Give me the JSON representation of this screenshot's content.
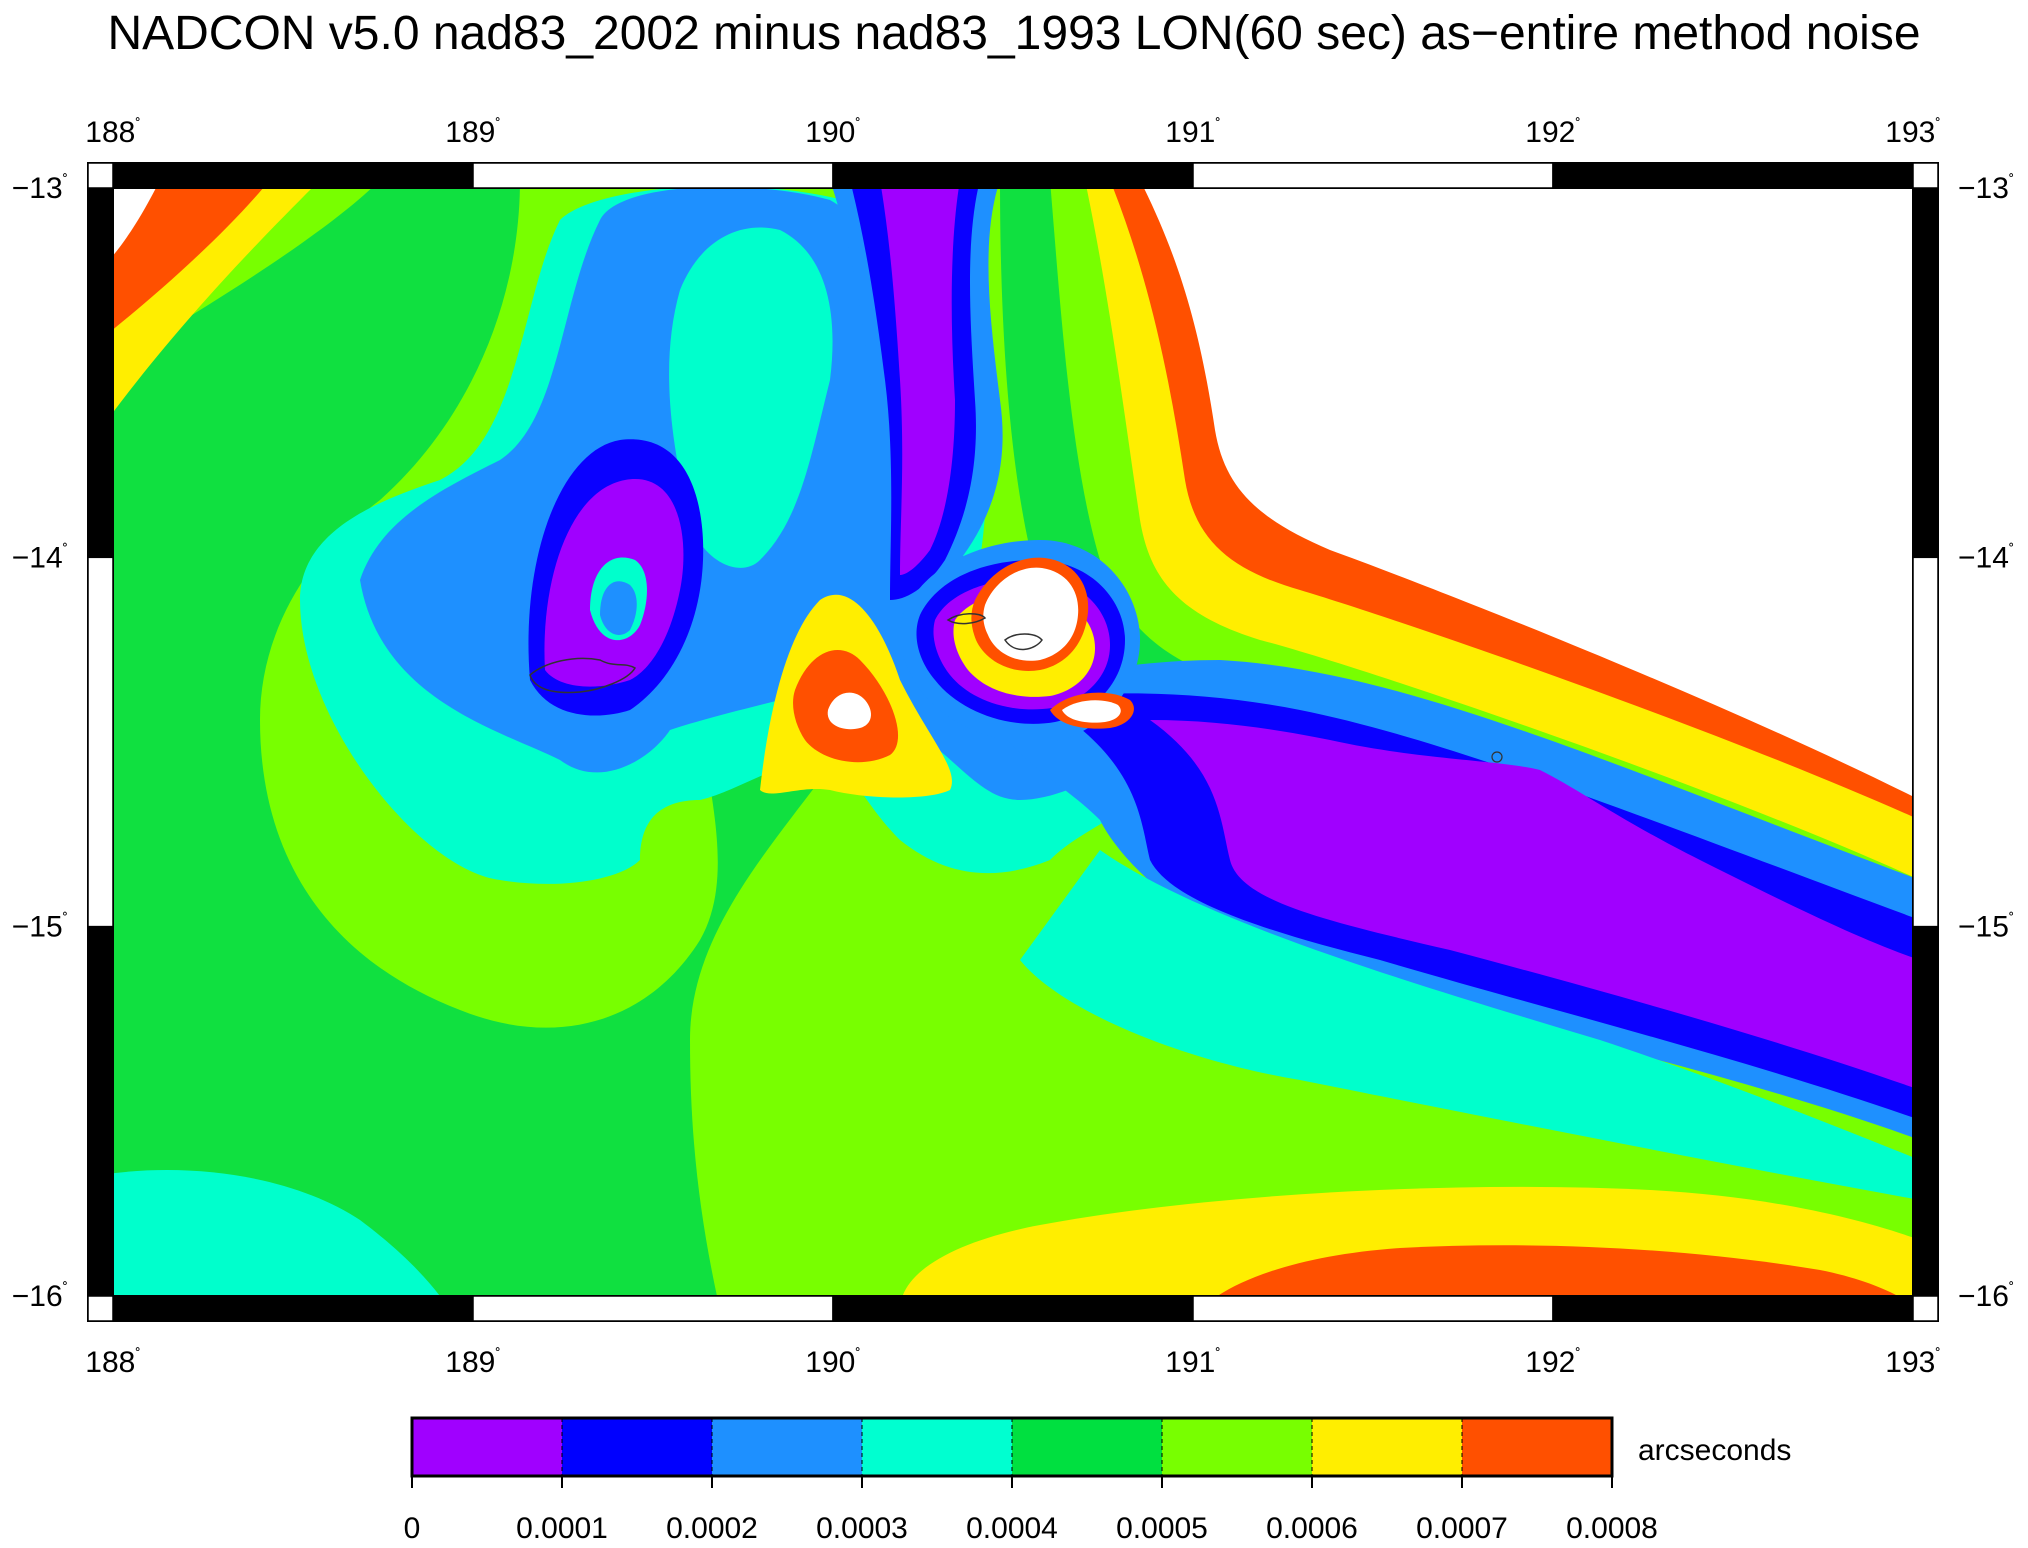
{
  "title": "NADCON v5.0 nad83_2002 minus nad83_1993 LON(60 sec) as−entire method noise",
  "map": {
    "lon_range": [
      188,
      193
    ],
    "lat_range": [
      -16,
      -13
    ],
    "lon_ticks": [
      "188",
      "189",
      "190",
      "191",
      "192",
      "193"
    ],
    "lat_ticks": [
      "−13",
      "−14",
      "−15",
      "−16"
    ],
    "degree_symbol": "˚"
  },
  "colorbar": {
    "unit_label": "arcseconds",
    "tick_labels": [
      "0",
      "0.0001",
      "0.0002",
      "0.0003",
      "0.0004",
      "0.0005",
      "0.0006",
      "0.0007",
      "0.0008"
    ],
    "colors": [
      "#a000ff",
      "#0000ff",
      "#1e90ff",
      "#00ffd0",
      "#00e040",
      "#78ff00",
      "#ffee00",
      "#ff5000"
    ]
  },
  "colors": {
    "purple": "#a000ff",
    "blue": "#0a00ff",
    "skyblue": "#1e90ff",
    "cyan": "#00ffcc",
    "green": "#10e040",
    "lime": "#78ff00",
    "yellow": "#ffee00",
    "orange": "#ff5000",
    "white": "#ffffff"
  }
}
